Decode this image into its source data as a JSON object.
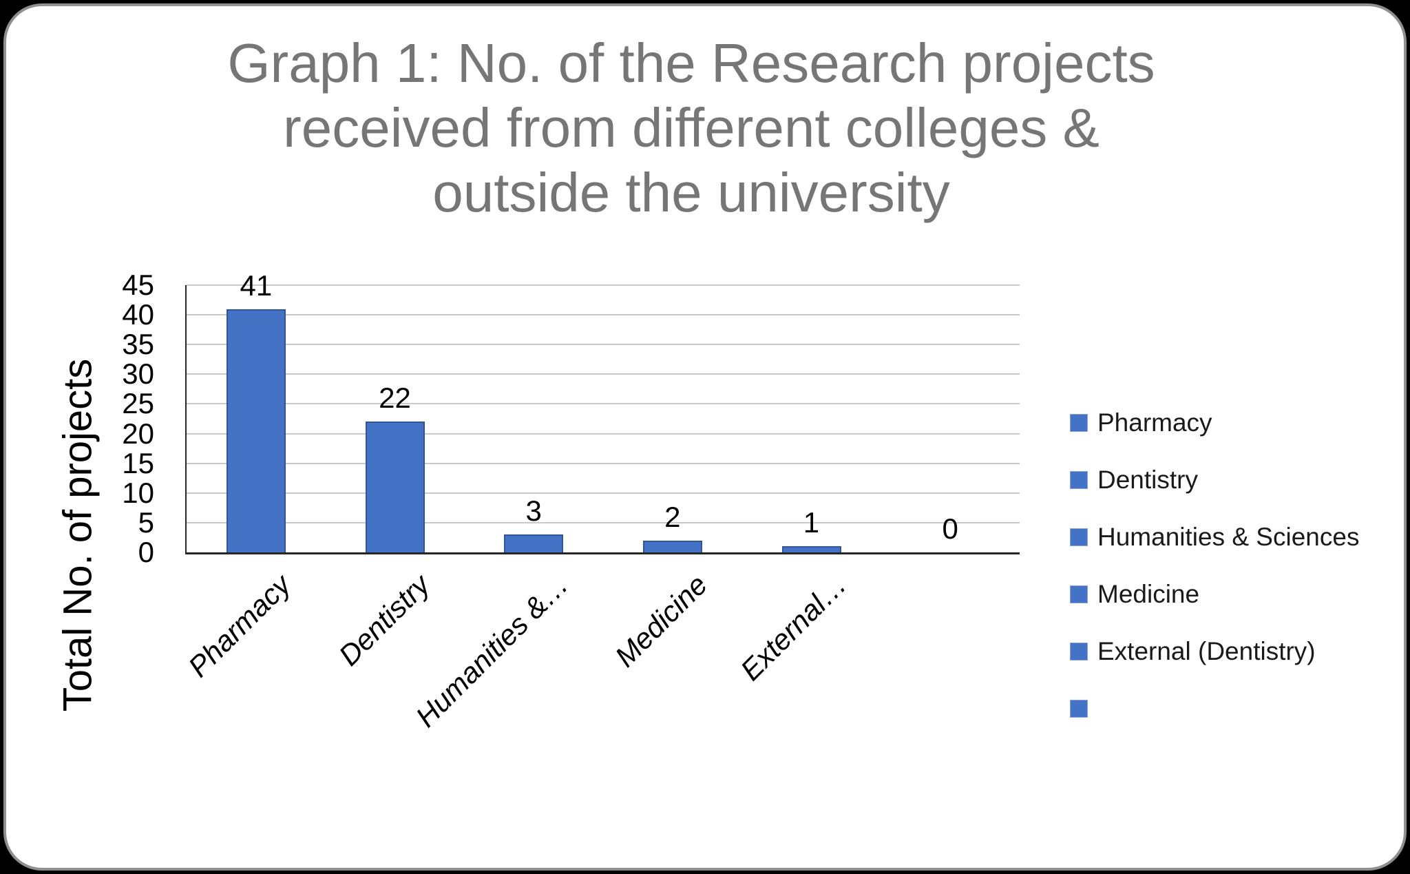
{
  "title": {
    "lines": [
      "Graph 1: No. of the Research projects",
      "received from different colleges &",
      "outside the university"
    ]
  },
  "chart_data": {
    "type": "bar",
    "title": "Graph 1: No. of the Research projects received from different colleges & outside the university",
    "categories": [
      "Pharmacy",
      "Dentistry",
      "Humanities &…",
      "Medicine",
      "External…",
      ""
    ],
    "values": [
      41,
      22,
      3,
      2,
      1,
      0
    ],
    "data_labels": [
      "41",
      "22",
      "3",
      "2",
      "1",
      "0"
    ],
    "xlabel": "",
    "ylabel": "Total No. of projects",
    "ylim": [
      0,
      45
    ],
    "yticks": [
      0,
      5,
      10,
      15,
      20,
      25,
      30,
      35,
      40,
      45
    ],
    "grid": true,
    "legend_position": "right",
    "legend": [
      "Pharmacy",
      "Dentistry",
      "Humanities & Sciences",
      "Medicine",
      "External (Dentistry)",
      ""
    ],
    "colors": {
      "bar_fill": "#4472C4",
      "bar_border": "#2F5597",
      "gridline": "#C9C9C9",
      "axis": "#262626",
      "title_text": "#767676",
      "label_text": "#000000"
    }
  }
}
